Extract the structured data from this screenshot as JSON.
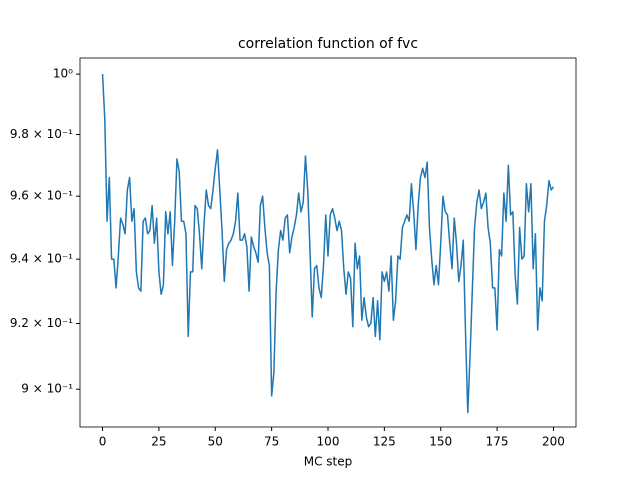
{
  "chart_data": {
    "type": "line",
    "title": "correlation function of fvc",
    "xlabel": "MC step",
    "yscale": "log",
    "color": "#1f77b4",
    "xlim": [
      -10,
      210
    ],
    "ylim": [
      0.8887,
      1.0054
    ],
    "xticks": [
      0,
      25,
      50,
      75,
      100,
      125,
      150,
      175,
      200
    ],
    "yticks": [
      {
        "value": 1,
        "label": "10⁰"
      },
      {
        "value": 0.98,
        "label": "9.8 × 10⁻¹"
      },
      {
        "value": 0.96,
        "label": "9.6 × 10⁻¹"
      },
      {
        "value": 0.94,
        "label": "9.4 × 10⁻¹"
      },
      {
        "value": 0.92,
        "label": "9.2 × 10⁻¹"
      },
      {
        "value": 0.9,
        "label": "9 × 10⁻¹"
      }
    ],
    "x": [
      0,
      1,
      2,
      3,
      4,
      5,
      6,
      7,
      8,
      9,
      10,
      11,
      12,
      13,
      14,
      15,
      16,
      17,
      18,
      19,
      20,
      21,
      22,
      23,
      24,
      25,
      26,
      27,
      28,
      29,
      30,
      31,
      32,
      33,
      34,
      35,
      36,
      37,
      38,
      39,
      40,
      41,
      42,
      43,
      44,
      45,
      46,
      47,
      48,
      49,
      50,
      51,
      52,
      53,
      54,
      55,
      56,
      57,
      58,
      59,
      60,
      61,
      62,
      63,
      64,
      65,
      66,
      67,
      68,
      69,
      70,
      71,
      72,
      73,
      74,
      75,
      76,
      77,
      78,
      79,
      80,
      81,
      82,
      83,
      84,
      85,
      86,
      87,
      88,
      89,
      90,
      91,
      92,
      93,
      94,
      95,
      96,
      97,
      98,
      99,
      100,
      101,
      102,
      103,
      104,
      105,
      106,
      107,
      108,
      109,
      110,
      111,
      112,
      113,
      114,
      115,
      116,
      117,
      118,
      119,
      120,
      121,
      122,
      123,
      124,
      125,
      126,
      127,
      128,
      129,
      130,
      131,
      132,
      133,
      134,
      135,
      136,
      137,
      138,
      139,
      140,
      141,
      142,
      143,
      144,
      145,
      146,
      147,
      148,
      149,
      150,
      151,
      152,
      153,
      154,
      155,
      156,
      157,
      158,
      159,
      160,
      161,
      162,
      163,
      164,
      165,
      166,
      167,
      168,
      169,
      170,
      171,
      172,
      173,
      174,
      175,
      176,
      177,
      178,
      179,
      180,
      181,
      182,
      183,
      184,
      185,
      186,
      187,
      188,
      189,
      190,
      191,
      192,
      193,
      194,
      195,
      196,
      197,
      198,
      199,
      200
    ],
    "values": [
      1.0,
      0.985,
      0.952,
      0.966,
      0.94,
      0.94,
      0.931,
      0.941,
      0.953,
      0.951,
      0.948,
      0.962,
      0.966,
      0.952,
      0.956,
      0.936,
      0.931,
      0.93,
      0.952,
      0.953,
      0.948,
      0.949,
      0.957,
      0.945,
      0.953,
      0.936,
      0.929,
      0.932,
      0.955,
      0.948,
      0.955,
      0.938,
      0.952,
      0.972,
      0.968,
      0.952,
      0.952,
      0.948,
      0.916,
      0.936,
      0.936,
      0.957,
      0.956,
      0.948,
      0.937,
      0.951,
      0.962,
      0.957,
      0.956,
      0.962,
      0.969,
      0.975,
      0.962,
      0.949,
      0.933,
      0.943,
      0.945,
      0.946,
      0.948,
      0.952,
      0.961,
      0.946,
      0.946,
      0.948,
      0.944,
      0.93,
      0.947,
      0.944,
      0.942,
      0.939,
      0.957,
      0.96,
      0.95,
      0.942,
      0.938,
      0.898,
      0.905,
      0.93,
      0.943,
      0.949,
      0.946,
      0.953,
      0.954,
      0.942,
      0.947,
      0.95,
      0.954,
      0.961,
      0.955,
      0.958,
      0.973,
      0.962,
      0.943,
      0.922,
      0.937,
      0.938,
      0.931,
      0.928,
      0.938,
      0.954,
      0.941,
      0.954,
      0.956,
      0.953,
      0.949,
      0.952,
      0.949,
      0.937,
      0.929,
      0.936,
      0.934,
      0.919,
      0.945,
      0.937,
      0.941,
      0.921,
      0.928,
      0.922,
      0.919,
      0.92,
      0.928,
      0.916,
      0.927,
      0.915,
      0.936,
      0.933,
      0.936,
      0.93,
      0.941,
      0.921,
      0.927,
      0.941,
      0.94,
      0.95,
      0.952,
      0.954,
      0.952,
      0.964,
      0.955,
      0.943,
      0.957,
      0.966,
      0.969,
      0.966,
      0.971,
      0.95,
      0.94,
      0.932,
      0.938,
      0.932,
      0.945,
      0.96,
      0.955,
      0.954,
      0.945,
      0.937,
      0.953,
      0.945,
      0.933,
      0.938,
      0.946,
      0.917,
      0.893,
      0.91,
      0.93,
      0.95,
      0.958,
      0.962,
      0.956,
      0.958,
      0.961,
      0.95,
      0.945,
      0.931,
      0.931,
      0.918,
      0.943,
      0.941,
      0.961,
      0.952,
      0.97,
      0.954,
      0.955,
      0.935,
      0.926,
      0.95,
      0.94,
      0.941,
      0.964,
      0.955,
      0.964,
      0.937,
      0.948,
      0.918,
      0.931,
      0.927,
      0.952,
      0.957,
      0.965,
      0.962,
      0.963
    ]
  }
}
